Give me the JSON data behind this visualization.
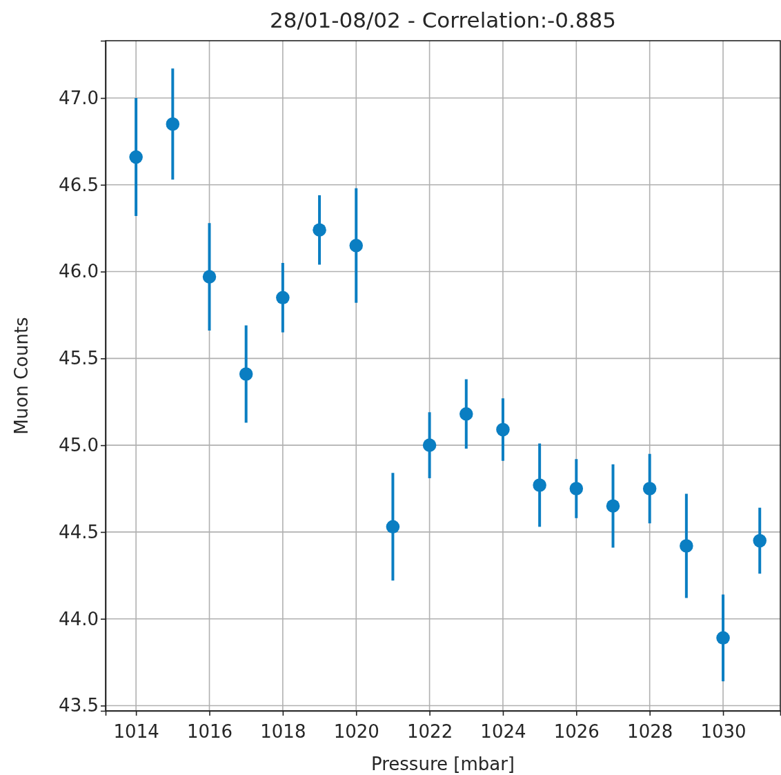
{
  "chart_data": {
    "type": "scatter",
    "title": "28/01-08/02 - Correlation:-0.885",
    "xlabel": "Pressure [mbar]",
    "ylabel": "Muon Counts",
    "x": [
      1014,
      1015,
      1016,
      1017,
      1018,
      1019,
      1020,
      1021,
      1022,
      1023,
      1024,
      1025,
      1026,
      1027,
      1028,
      1029,
      1030,
      1031
    ],
    "series": [
      {
        "color": "#0a7ec2",
        "values": [
          46.66,
          46.85,
          45.97,
          45.41,
          45.85,
          46.24,
          46.15,
          44.53,
          45.0,
          45.18,
          45.09,
          44.77,
          44.75,
          44.65,
          44.75,
          44.42,
          43.89,
          44.45
        ],
        "errors": [
          0.34,
          0.32,
          0.31,
          0.28,
          0.2,
          0.2,
          0.33,
          0.31,
          0.19,
          0.2,
          0.18,
          0.24,
          0.17,
          0.24,
          0.2,
          0.3,
          0.25,
          0.19
        ]
      }
    ],
    "xlim": [
      1013.17,
      1031.56
    ],
    "ylim": [
      43.47,
      47.33
    ],
    "xticks": [
      1014,
      1016,
      1018,
      1020,
      1022,
      1024,
      1026,
      1028,
      1030
    ],
    "yticks": [
      {
        "value": 43.5,
        "label": "43.5"
      },
      {
        "value": 44,
        "label": "44.0"
      },
      {
        "value": 44.5,
        "label": "44.5"
      },
      {
        "value": 45,
        "label": "45.0"
      },
      {
        "value": 45.5,
        "label": "45.5"
      },
      {
        "value": 46,
        "label": "46.0"
      },
      {
        "value": 46.5,
        "label": "46.5"
      },
      {
        "value": 47,
        "label": "47.0"
      }
    ],
    "grid": true,
    "marker": "circle"
  }
}
